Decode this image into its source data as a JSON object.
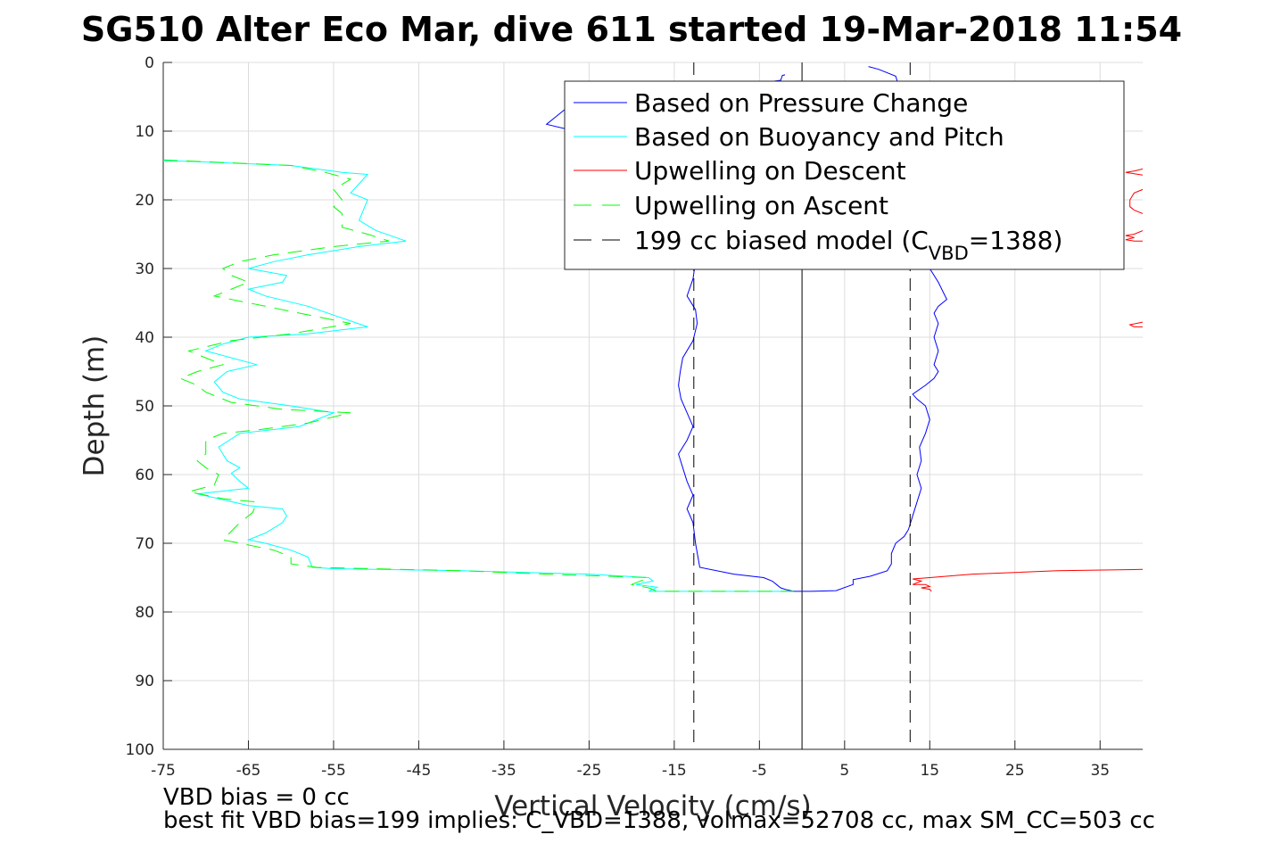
{
  "chart_data": {
    "type": "line",
    "title": "SG510 Alter Eco Mar, dive 611 started 19-Mar-2018 11:54",
    "xlabel": "Vertical Velocity (cm/s)",
    "ylabel": "Depth (m)",
    "xlim": [
      -75,
      40
    ],
    "ylim": [
      0,
      100
    ],
    "y_reversed": true,
    "grid": true,
    "xticks": [
      -75,
      -65,
      -55,
      -45,
      -35,
      -25,
      -15,
      -5,
      5,
      15,
      25,
      35
    ],
    "yticks": [
      0,
      10,
      20,
      30,
      40,
      50,
      60,
      70,
      80,
      90,
      100
    ],
    "legend": {
      "placement": "top-right",
      "entries": [
        {
          "label": "Based on Pressure Change",
          "color": "#0000ff",
          "style": "solid"
        },
        {
          "label": "Based on Buoyancy and Pitch",
          "color": "#00ffff",
          "style": "solid"
        },
        {
          "label": "Upwelling on Descent",
          "color": "#ff0000",
          "style": "solid"
        },
        {
          "label": "Upwelling on Ascent",
          "color": "#00ff00",
          "style": "dashed"
        },
        {
          "label_main": "199 cc biased model (C",
          "label_sub": "VBD",
          "label_tail": "=1388)",
          "color": "#000000",
          "style": "dashed"
        }
      ]
    },
    "series": [
      {
        "name": "Based on Pressure Change",
        "color": "#0000ff",
        "style": "solid",
        "segments": [
          [
            [
              -2,
              1.8
            ],
            [
              -2.3,
              1.9
            ],
            [
              -2.5,
              2.6
            ],
            [
              -5,
              3
            ],
            [
              -13,
              4
            ],
            [
              -22,
              5
            ],
            [
              -27.5,
              6.5
            ],
            [
              -29,
              8
            ],
            [
              -30,
              9
            ],
            [
              -28,
              9.6
            ],
            [
              -24,
              10.2
            ],
            [
              -18,
              11
            ],
            [
              -13,
              12
            ],
            [
              -12,
              14
            ],
            [
              -12,
              17
            ],
            [
              -12.3,
              20
            ],
            [
              -12.5,
              23
            ],
            [
              -12.8,
              26
            ],
            [
              -12.5,
              29
            ],
            [
              -12.8,
              31.5
            ],
            [
              -13.5,
              34
            ],
            [
              -12.5,
              36
            ],
            [
              -12.3,
              38
            ],
            [
              -12.8,
              40.5
            ],
            [
              -14,
              43
            ],
            [
              -14.3,
              45
            ],
            [
              -14.5,
              47
            ],
            [
              -14.2,
              49
            ],
            [
              -13.5,
              51
            ],
            [
              -12.8,
              53
            ],
            [
              -13.5,
              55
            ],
            [
              -14.5,
              57
            ],
            [
              -14,
              59
            ],
            [
              -13.5,
              61
            ],
            [
              -12.8,
              63
            ],
            [
              -13.5,
              65
            ],
            [
              -12.8,
              67
            ],
            [
              -12.5,
              70
            ],
            [
              -12,
              73.5
            ],
            [
              -8,
              74.5
            ],
            [
              -4.5,
              75
            ],
            [
              -3.5,
              75.5
            ],
            [
              -3,
              76
            ],
            [
              -2.5,
              76.5
            ],
            [
              -2,
              76.7
            ],
            [
              -1,
              77
            ],
            [
              1,
              77
            ],
            [
              4,
              76.9
            ],
            [
              6,
              76
            ],
            [
              6,
              75.3
            ],
            [
              8,
              74.8
            ],
            [
              10,
              74
            ],
            [
              10.5,
              73
            ],
            [
              10.5,
              71.5
            ],
            [
              11,
              70
            ],
            [
              12,
              69
            ],
            [
              12.5,
              68
            ],
            [
              13,
              66
            ],
            [
              13.5,
              64
            ],
            [
              14,
              62
            ],
            [
              13.5,
              60
            ],
            [
              14,
              58
            ],
            [
              13.8,
              56
            ],
            [
              14.5,
              54
            ],
            [
              15,
              52
            ],
            [
              14.5,
              50
            ],
            [
              13.5,
              49
            ],
            [
              13,
              48.3
            ],
            [
              14.5,
              47
            ],
            [
              15.5,
              46
            ],
            [
              16,
              45
            ],
            [
              15.5,
              44
            ],
            [
              16,
              42
            ],
            [
              15.5,
              40
            ],
            [
              16,
              38
            ],
            [
              15.5,
              36.5
            ],
            [
              16,
              35.5
            ],
            [
              17,
              34.5
            ],
            [
              16,
              32
            ],
            [
              15,
              30
            ],
            [
              15.5,
              28
            ],
            [
              15.5,
              25
            ],
            [
              14,
              22
            ],
            [
              13,
              19
            ],
            [
              13,
              17
            ],
            [
              12.8,
              14
            ],
            [
              12.5,
              10
            ],
            [
              12,
              6
            ],
            [
              11.5,
              4
            ],
            [
              11,
              2
            ],
            [
              9,
              1
            ],
            [
              7.8,
              0.6
            ]
          ]
        ]
      },
      {
        "name": "Based on Buoyancy and Pitch",
        "color": "#00ffff",
        "style": "solid",
        "segments": [
          [
            [
              -75,
              14.3
            ],
            [
              -72,
              14.4
            ],
            [
              -60,
              15
            ],
            [
              -54,
              16
            ],
            [
              -51,
              16.3
            ],
            [
              -53,
              19
            ],
            [
              -51,
              20
            ],
            [
              -52,
              23
            ],
            [
              -50,
              24.5
            ],
            [
              -46.5,
              26
            ],
            [
              -52,
              26.8
            ],
            [
              -58,
              28
            ],
            [
              -62,
              29
            ],
            [
              -65,
              30
            ],
            [
              -60.5,
              31
            ],
            [
              -61,
              32
            ],
            [
              -65,
              33
            ],
            [
              -63,
              34
            ],
            [
              -58,
              35.5
            ],
            [
              -51,
              38.5
            ],
            [
              -58,
              39.5
            ],
            [
              -65,
              40
            ],
            [
              -68,
              41
            ],
            [
              -70,
              42
            ],
            [
              -67,
              43
            ],
            [
              -64,
              44
            ],
            [
              -67.5,
              45
            ],
            [
              -69,
              46.5
            ],
            [
              -68,
              48
            ],
            [
              -66,
              49
            ],
            [
              -60,
              50
            ],
            [
              -55,
              51
            ],
            [
              -59,
              53
            ],
            [
              -66,
              54
            ],
            [
              -68.5,
              56
            ],
            [
              -67.5,
              58
            ],
            [
              -66,
              59
            ],
            [
              -67,
              59.8
            ],
            [
              -66,
              61
            ],
            [
              -65,
              62
            ],
            [
              -71,
              62.8
            ],
            [
              -68.5,
              63.5
            ],
            [
              -65,
              64.5
            ],
            [
              -61,
              65
            ],
            [
              -60.5,
              66
            ],
            [
              -61,
              67
            ],
            [
              -63,
              68.5
            ],
            [
              -65,
              69.5
            ],
            [
              -63,
              70
            ],
            [
              -60,
              71
            ],
            [
              -58,
              72
            ],
            [
              -57.5,
              73.5
            ],
            [
              -55,
              73.7
            ],
            [
              -40,
              74
            ],
            [
              -25,
              74.5
            ],
            [
              -18,
              75
            ],
            [
              -17.5,
              75.5
            ],
            [
              -19.5,
              76
            ],
            [
              -17,
              76.4
            ],
            [
              -18,
              77
            ],
            [
              -1,
              77
            ]
          ]
        ]
      },
      {
        "name": "Upwelling on Ascent",
        "color": "#00ff00",
        "style": "dashed",
        "segments": [
          [
            [
              -75,
              14.2
            ],
            [
              -60,
              15
            ],
            [
              -56,
              16
            ],
            [
              -53,
              17
            ],
            [
              -55,
              18.5
            ],
            [
              -54,
              20
            ],
            [
              -55,
              21
            ],
            [
              -54,
              22
            ],
            [
              -54,
              24
            ],
            [
              -51,
              25
            ],
            [
              -48.5,
              26
            ],
            [
              -55,
              26.8
            ],
            [
              -62,
              28
            ],
            [
              -66,
              29
            ],
            [
              -68,
              30
            ],
            [
              -67,
              31
            ],
            [
              -65,
              32
            ],
            [
              -67,
              33
            ],
            [
              -69,
              34
            ],
            [
              -63,
              35.5
            ],
            [
              -57,
              37
            ],
            [
              -53,
              38
            ],
            [
              -60,
              39.5
            ],
            [
              -67,
              40.5
            ],
            [
              -72,
              42
            ],
            [
              -70,
              43
            ],
            [
              -68,
              44
            ],
            [
              -71,
              45
            ],
            [
              -73,
              46
            ],
            [
              -71,
              47
            ],
            [
              -70,
              48
            ],
            [
              -67,
              49.5
            ],
            [
              -61,
              50.5
            ],
            [
              -53,
              51
            ],
            [
              -58,
              52.5
            ],
            [
              -64,
              53.5
            ],
            [
              -68,
              54
            ],
            [
              -70,
              55
            ],
            [
              -70,
              57
            ],
            [
              -71,
              58
            ],
            [
              -70,
              59
            ],
            [
              -68.5,
              60
            ],
            [
              -69,
              61.5
            ],
            [
              -72,
              62.5
            ],
            [
              -68,
              63.5
            ],
            [
              -64,
              64
            ],
            [
              -64.5,
              65.5
            ],
            [
              -66,
              67
            ],
            [
              -68,
              69.5
            ],
            [
              -66,
              70
            ],
            [
              -62,
              71
            ],
            [
              -60,
              72
            ],
            [
              -60,
              73
            ],
            [
              -57,
              73.5
            ],
            [
              -40,
              74
            ],
            [
              -30,
              74.5
            ],
            [
              -18,
              75
            ],
            [
              -19,
              75.5
            ],
            [
              -20,
              76
            ],
            [
              -18,
              76.5
            ],
            [
              -17,
              77
            ],
            [
              -1,
              77
            ]
          ]
        ]
      },
      {
        "name": "Upwelling on Descent",
        "color": "#ff0000",
        "style": "solid",
        "segments": [
          [
            [
              40,
              15.5
            ],
            [
              39,
              15.8
            ],
            [
              38,
              16
            ],
            [
              39,
              16.2
            ],
            [
              40,
              16.4
            ]
          ],
          [
            [
              40,
              18.5
            ],
            [
              39,
              19
            ],
            [
              38.5,
              20
            ],
            [
              38.5,
              21
            ],
            [
              39,
              21.5
            ],
            [
              40,
              22
            ]
          ],
          [
            [
              40,
              24.5
            ],
            [
              39,
              25
            ],
            [
              38,
              25.2
            ],
            [
              39,
              25.5
            ],
            [
              38,
              25.8
            ],
            [
              39,
              26
            ],
            [
              40,
              26
            ]
          ],
          [
            [
              40,
              37.8
            ],
            [
              38.5,
              38.2
            ],
            [
              39,
              38.5
            ],
            [
              40,
              38.5
            ]
          ],
          [
            [
              40,
              73.8
            ],
            [
              30,
              74
            ],
            [
              20,
              74.5
            ],
            [
              15,
              75
            ],
            [
              13,
              75.2
            ],
            [
              14,
              75.5
            ],
            [
              13,
              76
            ],
            [
              14.5,
              76
            ],
            [
              15,
              76.3
            ],
            [
              14,
              76.5
            ],
            [
              15,
              76.7
            ],
            [
              15.2,
              77
            ]
          ]
        ]
      },
      {
        "name": "199 cc biased model (C_VBD=1388)",
        "color": "#000000",
        "style": "dashed",
        "segments": [
          [
            [
              -12.7,
              0
            ],
            [
              -12.7,
              100
            ]
          ],
          [
            [
              12.7,
              0
            ],
            [
              12.7,
              100
            ]
          ]
        ]
      }
    ],
    "reference_lines": [
      {
        "x": 0,
        "color": "#000000",
        "style": "solid"
      }
    ]
  },
  "notes": {
    "vbd_bias": "VBD bias = 0 cc",
    "best_fit": "best fit VBD bias=199 implies: C_VBD=1388, volmax=52708 cc, max SM_CC=503 cc"
  }
}
